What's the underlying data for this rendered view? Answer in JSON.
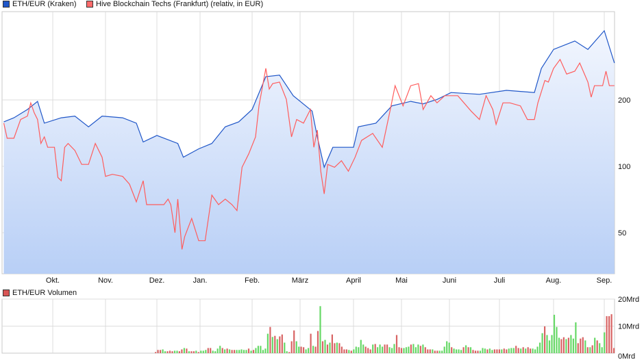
{
  "legend": {
    "series1": "ETH/EUR (Kraken)",
    "series1_color": "#1f56c8",
    "series2": "Hive Blockchain Techs (Frankfurt) (relativ, in EUR)",
    "series2_color": "#ff5c5c",
    "volume": "ETH/EUR Volumen",
    "volume_color": "#d85555"
  },
  "chart_data": [
    {
      "type": "line",
      "yscale": "log",
      "grid": true,
      "legend_position": "top-left",
      "x_tick_labels": [
        "Okt.",
        "Nov.",
        "Dez.",
        "Jan.",
        "Feb.",
        "März",
        "April",
        "Mai",
        "Juni",
        "Juli",
        "Aug.",
        "Sep."
      ],
      "y_tick_labels": [
        "50",
        "100",
        "200"
      ],
      "y_ticks": [
        50,
        100,
        200
      ],
      "series": [
        {
          "name": "ETH/EUR (Kraken)",
          "color": "#1f56c8",
          "fill": "area",
          "points": [
            [
              "02.09.",
              159
            ],
            [
              "08.09.",
              166
            ],
            [
              "16.09.",
              181
            ],
            [
              "22.09.",
              197
            ],
            [
              "26.09.",
              157
            ],
            [
              "06.10.",
              166
            ],
            [
              "14.10.",
              169
            ],
            [
              "22.10.",
              151
            ],
            [
              "30.10.",
              169
            ],
            [
              "11.11.",
              166
            ],
            [
              "19.11.",
              157
            ],
            [
              "23.11.",
              129
            ],
            [
              "01.12.",
              138
            ],
            [
              "16.12.",
              127
            ],
            [
              "20.12.",
              110
            ],
            [
              "31.12.",
              120
            ],
            [
              "08.01.",
              127
            ],
            [
              "16.01.",
              151
            ],
            [
              "24.01.",
              159
            ],
            [
              "01.02.",
              181
            ],
            [
              "09.02.",
              255
            ],
            [
              "17.02.",
              259
            ],
            [
              "25.02.",
              209
            ],
            [
              "08.03.",
              178
            ],
            [
              "11.03.",
              136
            ],
            [
              "15.03.",
              99
            ],
            [
              "20.03.",
              122
            ],
            [
              "01.04.",
              122
            ],
            [
              "04.04.",
              151
            ],
            [
              "15.04.",
              157
            ],
            [
              "25.04.",
              188
            ],
            [
              "07.05.",
              197
            ],
            [
              "15.05.",
              192
            ],
            [
              "24.05.",
              201
            ],
            [
              "02.06.",
              216
            ],
            [
              "19.06.",
              212
            ],
            [
              "05.07.",
              221
            ],
            [
              "21.07.",
              216
            ],
            [
              "25.07.",
              278
            ],
            [
              "01.08.",
              339
            ],
            [
              "14.08.",
              370
            ],
            [
              "22.08.",
              339
            ],
            [
              "01.09.",
              412
            ],
            [
              "07.09.",
              294
            ]
          ]
        },
        {
          "name": "Hive Blockchain Techs (Frankfurt) (relativ, in EUR)",
          "color": "#ff5c5c",
          "points": [
            [
              "02.09.",
              157
            ],
            [
              "04.09.",
              134
            ],
            [
              "08.09.",
              134
            ],
            [
              "12.09.",
              163
            ],
            [
              "16.09.",
              169
            ],
            [
              "18.09.",
              194
            ],
            [
              "20.09.",
              175
            ],
            [
              "22.09.",
              163
            ],
            [
              "24.09.",
              127
            ],
            [
              "26.09.",
              136
            ],
            [
              "28.09.",
              122
            ],
            [
              "02.10.",
              122
            ],
            [
              "04.10.",
              89
            ],
            [
              "06.10.",
              86
            ],
            [
              "08.10.",
              122
            ],
            [
              "10.10.",
              127
            ],
            [
              "14.10.",
              118
            ],
            [
              "18.10.",
              102
            ],
            [
              "22.10.",
              102
            ],
            [
              "26.10.",
              127
            ],
            [
              "30.10.",
              110
            ],
            [
              "01.11.",
              90
            ],
            [
              "05.11.",
              92
            ],
            [
              "11.11.",
              90
            ],
            [
              "15.11.",
              83
            ],
            [
              "19.11.",
              69
            ],
            [
              "23.11.",
              86
            ],
            [
              "25.11.",
              67
            ],
            [
              "06.12.",
              67
            ],
            [
              "09.12.",
              71
            ],
            [
              "11.12.",
              67
            ],
            [
              "14.12.",
              50
            ],
            [
              "16.12.",
              71
            ],
            [
              "19.12.",
              42
            ],
            [
              "21.12.",
              48
            ],
            [
              "26.12.",
              58
            ],
            [
              "31.12.",
              46
            ],
            [
              "04.01.",
              46
            ],
            [
              "08.01.",
              74
            ],
            [
              "12.01.",
              67
            ],
            [
              "16.01.",
              71
            ],
            [
              "20.01.",
              67
            ],
            [
              "23.01.",
              63
            ],
            [
              "26.01.",
              99
            ],
            [
              "30.01.",
              114
            ],
            [
              "03.02.",
              136
            ],
            [
              "05.02.",
              188
            ],
            [
              "09.02.",
              278
            ],
            [
              "11.02.",
              224
            ],
            [
              "13.02.",
              237
            ],
            [
              "17.02.",
              241
            ],
            [
              "21.02.",
              201
            ],
            [
              "24.02.",
              136
            ],
            [
              "27.02.",
              163
            ],
            [
              "03.03.",
              157
            ],
            [
              "07.03.",
              181
            ],
            [
              "09.03.",
              122
            ],
            [
              "11.03.",
              146
            ],
            [
              "13.03.",
              95
            ],
            [
              "15.03.",
              75
            ],
            [
              "17.03.",
              102
            ],
            [
              "21.03.",
              99
            ],
            [
              "25.03.",
              106
            ],
            [
              "29.03.",
              95
            ],
            [
              "02.04.",
              110
            ],
            [
              "06.04.",
              131
            ],
            [
              "13.04.",
              141
            ],
            [
              "19.04.",
              122
            ],
            [
              "24.04.",
              181
            ],
            [
              "27.04.",
              232
            ],
            [
              "02.05.",
              188
            ],
            [
              "07.05.",
              232
            ],
            [
              "12.05.",
              237
            ],
            [
              "15.05.",
              181
            ],
            [
              "20.05.",
              209
            ],
            [
              "24.05.",
              194
            ],
            [
              "29.05.",
              209
            ],
            [
              "06.06.",
              209
            ],
            [
              "14.06.",
              178
            ],
            [
              "19.06.",
              163
            ],
            [
              "23.06.",
              209
            ],
            [
              "27.06.",
              181
            ],
            [
              "29.06.",
              155
            ],
            [
              "03.07.",
              194
            ],
            [
              "07.07.",
              194
            ],
            [
              "13.07.",
              188
            ],
            [
              "17.07.",
              163
            ],
            [
              "21.07.",
              163
            ],
            [
              "23.07.",
              194
            ],
            [
              "27.07.",
              245
            ],
            [
              "29.07.",
              241
            ],
            [
              "01.08.",
              278
            ],
            [
              "05.08.",
              305
            ],
            [
              "09.08.",
              262
            ],
            [
              "14.08.",
              270
            ],
            [
              "17.08.",
              294
            ],
            [
              "22.08.",
              241
            ],
            [
              "24.08.",
              206
            ],
            [
              "26.08.",
              232
            ],
            [
              "31.08.",
              232
            ],
            [
              "02.09.",
              270
            ],
            [
              "04.09.",
              232
            ],
            [
              "07.09.",
              232
            ]
          ]
        }
      ]
    },
    {
      "type": "bar",
      "title": "ETH/EUR Volumen",
      "unit": "Mrd",
      "y_tick_labels": [
        "0Mrd",
        "10Mrd",
        "20Mrd"
      ],
      "ylim": [
        0,
        20
      ],
      "up_color": "#66d866",
      "down_color": "#d86464",
      "values": [
        0.4,
        1.2,
        1.2,
        1.4,
        0.7,
        0.7,
        0.9,
        0.7,
        0.9,
        0.9,
        0.7,
        1.4,
        1.9,
        1.7,
        0.7,
        0.7,
        0.7,
        0.9,
        0.4,
        0.9,
        0.9,
        1.2,
        1.9,
        1.9,
        0.9,
        0.7,
        1.7,
        2.7,
        1.9,
        1.4,
        1.7,
        1.4,
        1.2,
        1.2,
        1.2,
        1.2,
        1.4,
        1.2,
        1.2,
        1.7,
        0.9,
        1.2,
        1.9,
        2.7,
        2.7,
        1.2,
        1.7,
        7.2,
        9.7,
        6.0,
        6.4,
        5.2,
        6.2,
        6.9,
        3.9,
        0.7,
        0.4,
        4.4,
        8.4,
        4.4,
        2.4,
        2.4,
        2.2,
        1.4,
        1.9,
        7.2,
        2.7,
        2.4,
        8.2,
        17.4,
        4.4,
        4.9,
        3.2,
        3.9,
        6.9,
        3.7,
        3.9,
        3.7,
        2.4,
        1.4,
        1.4,
        1.2,
        0.9,
        1.4,
        2.4,
        2.2,
        4.9,
        3.2,
        2.4,
        1.9,
        1.4,
        3.2,
        3.4,
        2.2,
        3.2,
        2.4,
        3.2,
        3.2,
        2.2,
        1.9,
        3.4,
        6.7,
        2.2,
        1.9,
        1.9,
        2.2,
        2.4,
        3.2,
        3.4,
        2.2,
        3.2,
        2.7,
        3.2,
        2.2,
        1.4,
        1.4,
        1.4,
        0.9,
        0.9,
        0.9,
        0.9,
        2.4,
        4.4,
        3.9,
        2.2,
        1.7,
        1.4,
        1.4,
        1.2,
        2.2,
        2.9,
        2.2,
        2.2,
        1.2,
        0.9,
        0.9,
        0.9,
        1.9,
        1.7,
        1.4,
        1.7,
        1.2,
        1.4,
        1.4,
        1.4,
        1.4,
        1.7,
        1.4,
        1.7,
        1.9,
        1.9,
        2.7,
        1.9,
        1.7,
        2.2,
        1.7,
        2.2,
        1.7,
        1.7,
        1.4,
        2.4,
        3.9,
        7.4,
        9.9,
        6.7,
        4.7,
        6.7,
        14.2,
        9.7,
        5.7,
        5.2,
        5.9,
        5.2,
        5.7,
        6.7,
        5.4,
        11.4,
        3.7,
        5.4,
        5.9,
        4.7,
        2.2,
        2.2,
        2.9,
        5.7,
        4.7,
        3.7,
        2.2,
        7.7,
        13.7,
        13.7,
        14.4,
        1.9
      ],
      "directions": [
        "down",
        "down",
        "down",
        "up",
        "up",
        "down",
        "down",
        "down",
        "up",
        "up",
        "down",
        "down",
        "up",
        "down",
        "up",
        "down",
        "down",
        "up",
        "down",
        "up",
        "up",
        "up",
        "down",
        "down",
        "up",
        "up",
        "up",
        "up",
        "down",
        "up",
        "down",
        "up",
        "down",
        "down",
        "up",
        "up",
        "up",
        "up",
        "up",
        "down",
        "up",
        "down",
        "up",
        "up",
        "up",
        "up",
        "up",
        "up",
        "down",
        "up",
        "down",
        "up",
        "down",
        "down",
        "up",
        "up",
        "down",
        "down",
        "down",
        "up",
        "up",
        "down",
        "down",
        "up",
        "up",
        "down",
        "up",
        "down",
        "down",
        "up",
        "down",
        "up",
        "down",
        "up",
        "down",
        "down",
        "up",
        "down",
        "down",
        "down",
        "down",
        "up",
        "down",
        "up",
        "up",
        "up",
        "up",
        "up",
        "down",
        "down",
        "down",
        "up",
        "down",
        "up",
        "up",
        "up",
        "down",
        "down",
        "up",
        "up",
        "up",
        "down",
        "down",
        "down",
        "up",
        "up",
        "up",
        "down",
        "up",
        "up",
        "up",
        "down",
        "up",
        "down",
        "down",
        "down",
        "up",
        "down",
        "down",
        "up",
        "up",
        "up",
        "up",
        "up",
        "down",
        "up",
        "up",
        "up",
        "up",
        "down",
        "up",
        "down",
        "up",
        "down",
        "down",
        "down",
        "up",
        "up",
        "up",
        "down",
        "up",
        "up",
        "down",
        "down",
        "down",
        "up",
        "down",
        "down",
        "up",
        "up",
        "up",
        "down",
        "down",
        "up",
        "down",
        "up",
        "down",
        "down",
        "up",
        "up",
        "up",
        "up",
        "up",
        "down",
        "up",
        "up",
        "up",
        "up",
        "up",
        "up",
        "down",
        "down",
        "up",
        "down",
        "up",
        "up",
        "up",
        "down",
        "down",
        "down",
        "up",
        "down",
        "up",
        "down",
        "up",
        "down",
        "up",
        "up",
        "up",
        "down",
        "down",
        "down",
        "down"
      ]
    }
  ]
}
